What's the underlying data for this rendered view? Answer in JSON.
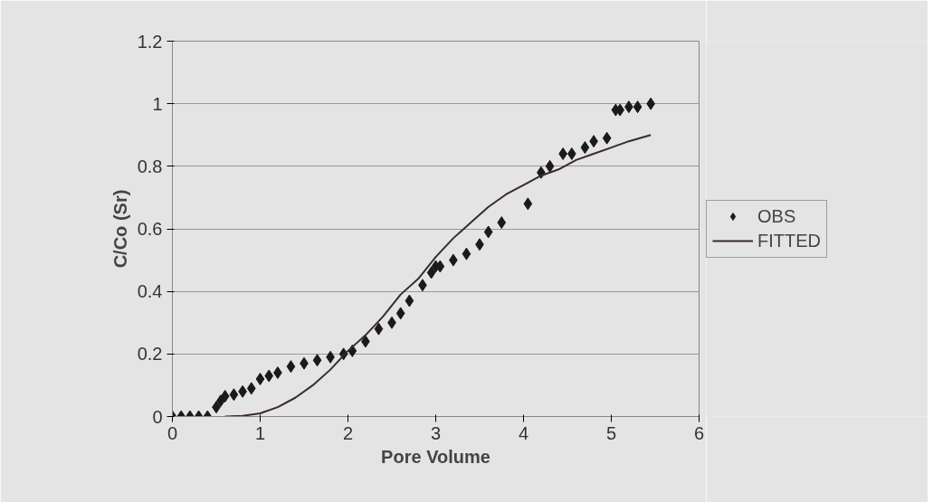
{
  "chart_data": {
    "type": "scatter",
    "xlabel": "Pore Volume",
    "ylabel": "C/Co (Sr)",
    "xlim": [
      0,
      6
    ],
    "ylim": [
      0,
      1.2
    ],
    "xticks": [
      0,
      1,
      2,
      3,
      4,
      5,
      6
    ],
    "yticks": [
      0,
      0.2,
      0.4,
      0.6,
      0.8,
      1,
      1.2
    ],
    "grid": "y",
    "legend": "right",
    "series": [
      {
        "name": "OBS",
        "marker": "diamond",
        "color": "#1a1a1a",
        "x": [
          0,
          0.1,
          0.2,
          0.3,
          0.4,
          0.5,
          0.55,
          0.6,
          0.7,
          0.8,
          0.9,
          1.0,
          1.1,
          1.2,
          1.35,
          1.5,
          1.65,
          1.8,
          1.95,
          2.05,
          2.2,
          2.35,
          2.5,
          2.6,
          2.7,
          2.85,
          2.95,
          3.0,
          3.05,
          3.2,
          3.35,
          3.5,
          3.6,
          3.75,
          4.05,
          4.2,
          4.3,
          4.45,
          4.55,
          4.7,
          4.8,
          4.95,
          5.05,
          5.1,
          5.2,
          5.3,
          5.45
        ],
        "values": [
          0,
          0,
          0,
          0,
          0,
          0.03,
          0.05,
          0.065,
          0.07,
          0.08,
          0.09,
          0.12,
          0.13,
          0.14,
          0.16,
          0.17,
          0.18,
          0.19,
          0.2,
          0.21,
          0.24,
          0.28,
          0.3,
          0.33,
          0.37,
          0.42,
          0.46,
          0.48,
          0.48,
          0.5,
          0.52,
          0.55,
          0.59,
          0.62,
          0.68,
          0.78,
          0.8,
          0.84,
          0.84,
          0.86,
          0.88,
          0.89,
          0.98,
          0.98,
          0.99,
          0.99,
          1.0
        ]
      },
      {
        "name": "FITTED",
        "type": "line",
        "line_style": "solid",
        "color": "#3a2a2a",
        "x": [
          0.6,
          0.8,
          1.0,
          1.2,
          1.4,
          1.6,
          1.8,
          2.0,
          2.2,
          2.4,
          2.6,
          2.8,
          3.0,
          3.2,
          3.4,
          3.6,
          3.8,
          4.0,
          4.2,
          4.4,
          4.6,
          4.8,
          5.0,
          5.2,
          5.45
        ],
        "values": [
          0,
          0.002,
          0.01,
          0.03,
          0.06,
          0.1,
          0.15,
          0.21,
          0.26,
          0.32,
          0.39,
          0.44,
          0.51,
          0.57,
          0.62,
          0.67,
          0.71,
          0.74,
          0.77,
          0.79,
          0.82,
          0.84,
          0.86,
          0.88,
          0.9
        ]
      }
    ]
  }
}
